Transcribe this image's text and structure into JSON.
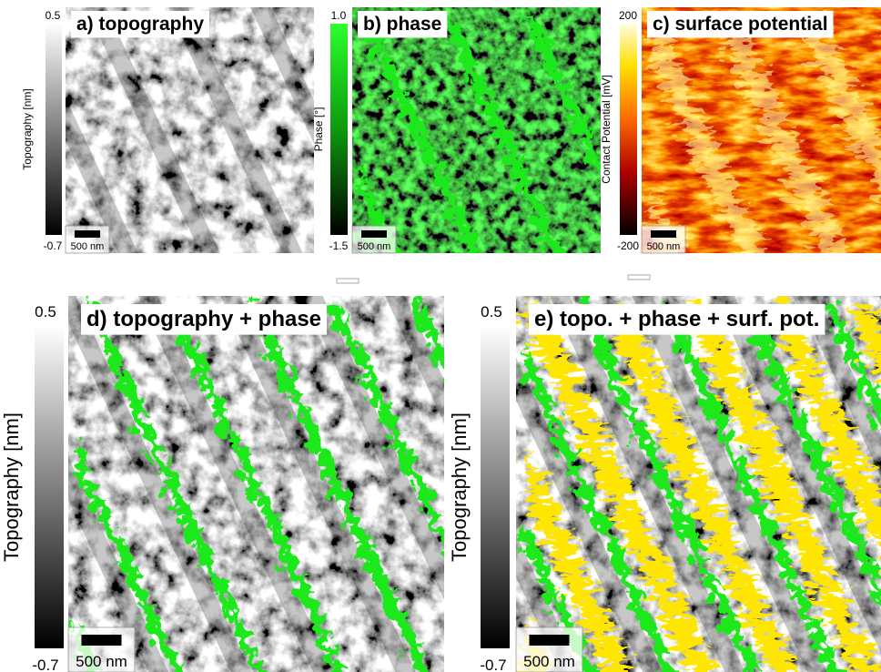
{
  "panels": [
    {
      "title": "a) topography",
      "colorbar": {
        "label": "Topography [nm]",
        "max": "0.5",
        "min": "-0.7"
      },
      "scalebar": "500 nm"
    },
    {
      "title": "b) phase",
      "colorbar": {
        "label": "Phase [°]",
        "max": "1.0",
        "min": "-1.5"
      },
      "scalebar": "500 nm"
    },
    {
      "title": "c) surface potential",
      "colorbar": {
        "label": "Contact Potential [mV]",
        "max": "200",
        "min": "-200"
      },
      "scalebar": "500 nm"
    },
    {
      "title": "d) topography + phase",
      "colorbar": {
        "label": "Topography [nm]",
        "max": "0.5",
        "min": "-0.7"
      },
      "scalebar": "500 nm"
    },
    {
      "title": "e) topo. + phase + surf. pot.",
      "colorbar": {
        "label": "Topography [nm]",
        "max": "0.5",
        "min": "-0.7"
      },
      "scalebar": "500 nm"
    }
  ]
}
